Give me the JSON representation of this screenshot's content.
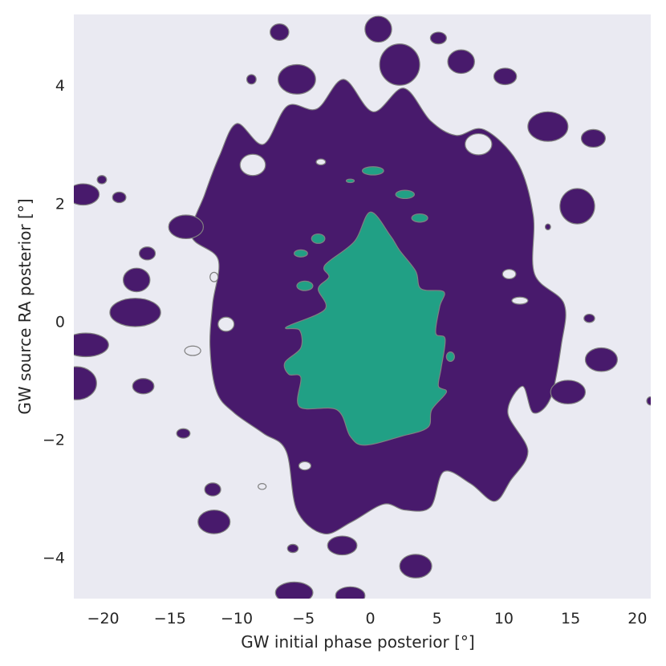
{
  "chart_data": {
    "type": "contour",
    "title": "",
    "xlabel": "GW initial phase posterior [°]",
    "ylabel": "GW source RA posterior [°]",
    "xlim": [
      -22.2,
      21
    ],
    "ylim": [
      -4.7,
      5.2
    ],
    "xticks": [
      -20,
      -15,
      -10,
      -5,
      0,
      5,
      10,
      15,
      20
    ],
    "yticks": [
      -4,
      -2,
      0,
      2,
      4
    ],
    "xtick_labels": [
      "−20",
      "−15",
      "−10",
      "−5",
      "0",
      "5",
      "10",
      "15",
      "20"
    ],
    "ytick_labels": [
      "−4",
      "−2",
      "0",
      "2",
      "4"
    ],
    "grid": false,
    "legend": "none",
    "background_color": "#eaeaf2",
    "levels": [
      {
        "name": "outer",
        "color": "#481a6c"
      },
      {
        "name": "inner",
        "color": "#21a085"
      }
    ],
    "edge_color": "#808080",
    "outer_main_region": [
      [
        -10,
        3.35
      ],
      [
        -8,
        3.0
      ],
      [
        -6.2,
        3.65
      ],
      [
        -4,
        3.6
      ],
      [
        -2,
        4.1
      ],
      [
        0.2,
        3.55
      ],
      [
        2.5,
        3.95
      ],
      [
        4.5,
        3.4
      ],
      [
        6.4,
        3.15
      ],
      [
        8.5,
        3.25
      ],
      [
        11,
        2.7
      ],
      [
        12.2,
        1.8
      ],
      [
        12.3,
        0.8
      ],
      [
        14.5,
        0.3
      ],
      [
        14.3,
        -0.4
      ],
      [
        13.5,
        -1.3
      ],
      [
        12.2,
        -1.55
      ],
      [
        11.4,
        -1.1
      ],
      [
        10.3,
        -1.55
      ],
      [
        11.8,
        -2.2
      ],
      [
        10.5,
        -2.7
      ],
      [
        9.3,
        -3.05
      ],
      [
        7.5,
        -2.75
      ],
      [
        5.5,
        -2.55
      ],
      [
        4.5,
        -3.15
      ],
      [
        2.6,
        -3.2
      ],
      [
        1,
        -3.1
      ],
      [
        -1.4,
        -3.4
      ],
      [
        -3.5,
        -3.6
      ],
      [
        -5.5,
        -3.2
      ],
      [
        -6.3,
        -2.2
      ],
      [
        -8,
        -1.9
      ],
      [
        -10.2,
        -1.55
      ],
      [
        -11.5,
        -1.2
      ],
      [
        -12,
        -0.45
      ],
      [
        -11.8,
        0.3
      ],
      [
        -11.4,
        1.05
      ],
      [
        -13.4,
        1.45
      ],
      [
        -12.4,
        2.15
      ],
      [
        -11.3,
        2.8
      ]
    ],
    "outer_blobs": [
      {
        "x": 0.6,
        "y": 4.95,
        "rx": 1.0,
        "ry": 0.22
      },
      {
        "x": -6.8,
        "y": 4.9,
        "rx": 0.7,
        "ry": 0.14
      },
      {
        "x": 5.1,
        "y": 4.8,
        "rx": 0.6,
        "ry": 0.1
      },
      {
        "x": 6.8,
        "y": 4.4,
        "rx": 1.0,
        "ry": 0.2
      },
      {
        "x": 2.2,
        "y": 4.35,
        "rx": 1.5,
        "ry": 0.35
      },
      {
        "x": 10.1,
        "y": 4.15,
        "rx": 0.85,
        "ry": 0.14
      },
      {
        "x": -5.5,
        "y": 4.1,
        "rx": 1.4,
        "ry": 0.25
      },
      {
        "x": -8.9,
        "y": 4.1,
        "rx": 0.35,
        "ry": 0.08
      },
      {
        "x": 13.3,
        "y": 3.3,
        "rx": 1.5,
        "ry": 0.25
      },
      {
        "x": 16.7,
        "y": 3.1,
        "rx": 0.9,
        "ry": 0.15
      },
      {
        "x": -20.1,
        "y": 2.4,
        "rx": 0.35,
        "ry": 0.07
      },
      {
        "x": -21.5,
        "y": 2.15,
        "rx": 1.2,
        "ry": 0.18
      },
      {
        "x": -18.8,
        "y": 2.1,
        "rx": 0.5,
        "ry": 0.09
      },
      {
        "x": 15.5,
        "y": 1.95,
        "rx": 1.3,
        "ry": 0.3
      },
      {
        "x": 13.3,
        "y": 1.6,
        "rx": 0.2,
        "ry": 0.05
      },
      {
        "x": -13.8,
        "y": 1.6,
        "rx": 1.3,
        "ry": 0.2
      },
      {
        "x": -16.7,
        "y": 1.15,
        "rx": 0.6,
        "ry": 0.11
      },
      {
        "x": -17.5,
        "y": 0.7,
        "rx": 1.0,
        "ry": 0.2
      },
      {
        "x": -17.6,
        "y": 0.15,
        "rx": 1.9,
        "ry": 0.24
      },
      {
        "x": 16.4,
        "y": 0.05,
        "rx": 0.4,
        "ry": 0.07
      },
      {
        "x": -21.3,
        "y": -0.4,
        "rx": 1.7,
        "ry": 0.2
      },
      {
        "x": 17.3,
        "y": -0.65,
        "rx": 1.2,
        "ry": 0.2
      },
      {
        "x": -22.0,
        "y": -1.05,
        "rx": 1.5,
        "ry": 0.28
      },
      {
        "x": 14.8,
        "y": -1.2,
        "rx": 1.3,
        "ry": 0.2
      },
      {
        "x": 21.0,
        "y": -1.35,
        "rx": 0.3,
        "ry": 0.07
      },
      {
        "x": -17.0,
        "y": -1.1,
        "rx": 0.8,
        "ry": 0.13
      },
      {
        "x": -14.0,
        "y": -1.9,
        "rx": 0.5,
        "ry": 0.08
      },
      {
        "x": -11.8,
        "y": -2.85,
        "rx": 0.6,
        "ry": 0.11
      },
      {
        "x": -11.7,
        "y": -3.4,
        "rx": 1.2,
        "ry": 0.2
      },
      {
        "x": -5.8,
        "y": -3.85,
        "rx": 0.4,
        "ry": 0.07
      },
      {
        "x": -2.1,
        "y": -3.8,
        "rx": 1.1,
        "ry": 0.16
      },
      {
        "x": 3.4,
        "y": -4.15,
        "rx": 1.2,
        "ry": 0.2
      },
      {
        "x": -5.7,
        "y": -4.6,
        "rx": 1.4,
        "ry": 0.18
      },
      {
        "x": -1.5,
        "y": -4.65,
        "rx": 1.1,
        "ry": 0.15
      }
    ],
    "outer_holes": [
      {
        "x": -8.8,
        "y": 2.65,
        "rx": 0.95,
        "ry": 0.18
      },
      {
        "x": 8.1,
        "y": 3.0,
        "rx": 1.0,
        "ry": 0.18
      },
      {
        "x": -3.7,
        "y": 2.7,
        "rx": 0.35,
        "ry": 0.05
      },
      {
        "x": -11.7,
        "y": 0.75,
        "rx": 0.3,
        "ry": 0.08
      },
      {
        "x": 10.4,
        "y": 0.8,
        "rx": 0.5,
        "ry": 0.08
      },
      {
        "x": 11.2,
        "y": 0.35,
        "rx": 0.6,
        "ry": 0.06
      },
      {
        "x": -10.8,
        "y": -0.05,
        "rx": 0.6,
        "ry": 0.12
      },
      {
        "x": -13.3,
        "y": -0.5,
        "rx": 0.6,
        "ry": 0.08
      },
      {
        "x": -4.9,
        "y": -2.45,
        "rx": 0.45,
        "ry": 0.07
      },
      {
        "x": -8.1,
        "y": -2.8,
        "rx": 0.3,
        "ry": 0.05
      }
    ],
    "inner_main_region": [
      [
        -1.2,
        1.35
      ],
      [
        0,
        1.85
      ],
      [
        1.5,
        1.45
      ],
      [
        2.2,
        1.2
      ],
      [
        3.4,
        0.85
      ],
      [
        3.8,
        0.55
      ],
      [
        5.5,
        0.5
      ],
      [
        5.2,
        0.25
      ],
      [
        4.9,
        -0.2
      ],
      [
        5.6,
        -0.3
      ],
      [
        5.3,
        -0.8
      ],
      [
        5.1,
        -1.1
      ],
      [
        5.7,
        -1.2
      ],
      [
        4.6,
        -1.5
      ],
      [
        4.3,
        -1.8
      ],
      [
        2.3,
        -1.95
      ],
      [
        -0.4,
        -2.1
      ],
      [
        -1.5,
        -1.95
      ],
      [
        -2.5,
        -1.5
      ],
      [
        -5.3,
        -1.45
      ],
      [
        -5.2,
        -0.95
      ],
      [
        -6.1,
        -0.9
      ],
      [
        -6.4,
        -0.7
      ],
      [
        -5.2,
        -0.45
      ],
      [
        -5.3,
        -0.15
      ],
      [
        -6.3,
        -0.1
      ],
      [
        -3.4,
        0.2
      ],
      [
        -3.9,
        0.55
      ],
      [
        -3.1,
        0.75
      ],
      [
        -3.4,
        0.95
      ]
    ],
    "inner_blobs": [
      {
        "x": 0.2,
        "y": 2.55,
        "rx": 0.8,
        "ry": 0.07
      },
      {
        "x": -1.5,
        "y": 2.38,
        "rx": 0.3,
        "ry": 0.03
      },
      {
        "x": 2.6,
        "y": 2.15,
        "rx": 0.7,
        "ry": 0.07
      },
      {
        "x": 3.7,
        "y": 1.75,
        "rx": 0.6,
        "ry": 0.07
      },
      {
        "x": -3.9,
        "y": 1.4,
        "rx": 0.5,
        "ry": 0.08
      },
      {
        "x": -5.2,
        "y": 1.15,
        "rx": 0.5,
        "ry": 0.06
      },
      {
        "x": -4.9,
        "y": 0.6,
        "rx": 0.6,
        "ry": 0.08
      },
      {
        "x": 6.0,
        "y": -0.6,
        "rx": 0.3,
        "ry": 0.08
      }
    ]
  }
}
